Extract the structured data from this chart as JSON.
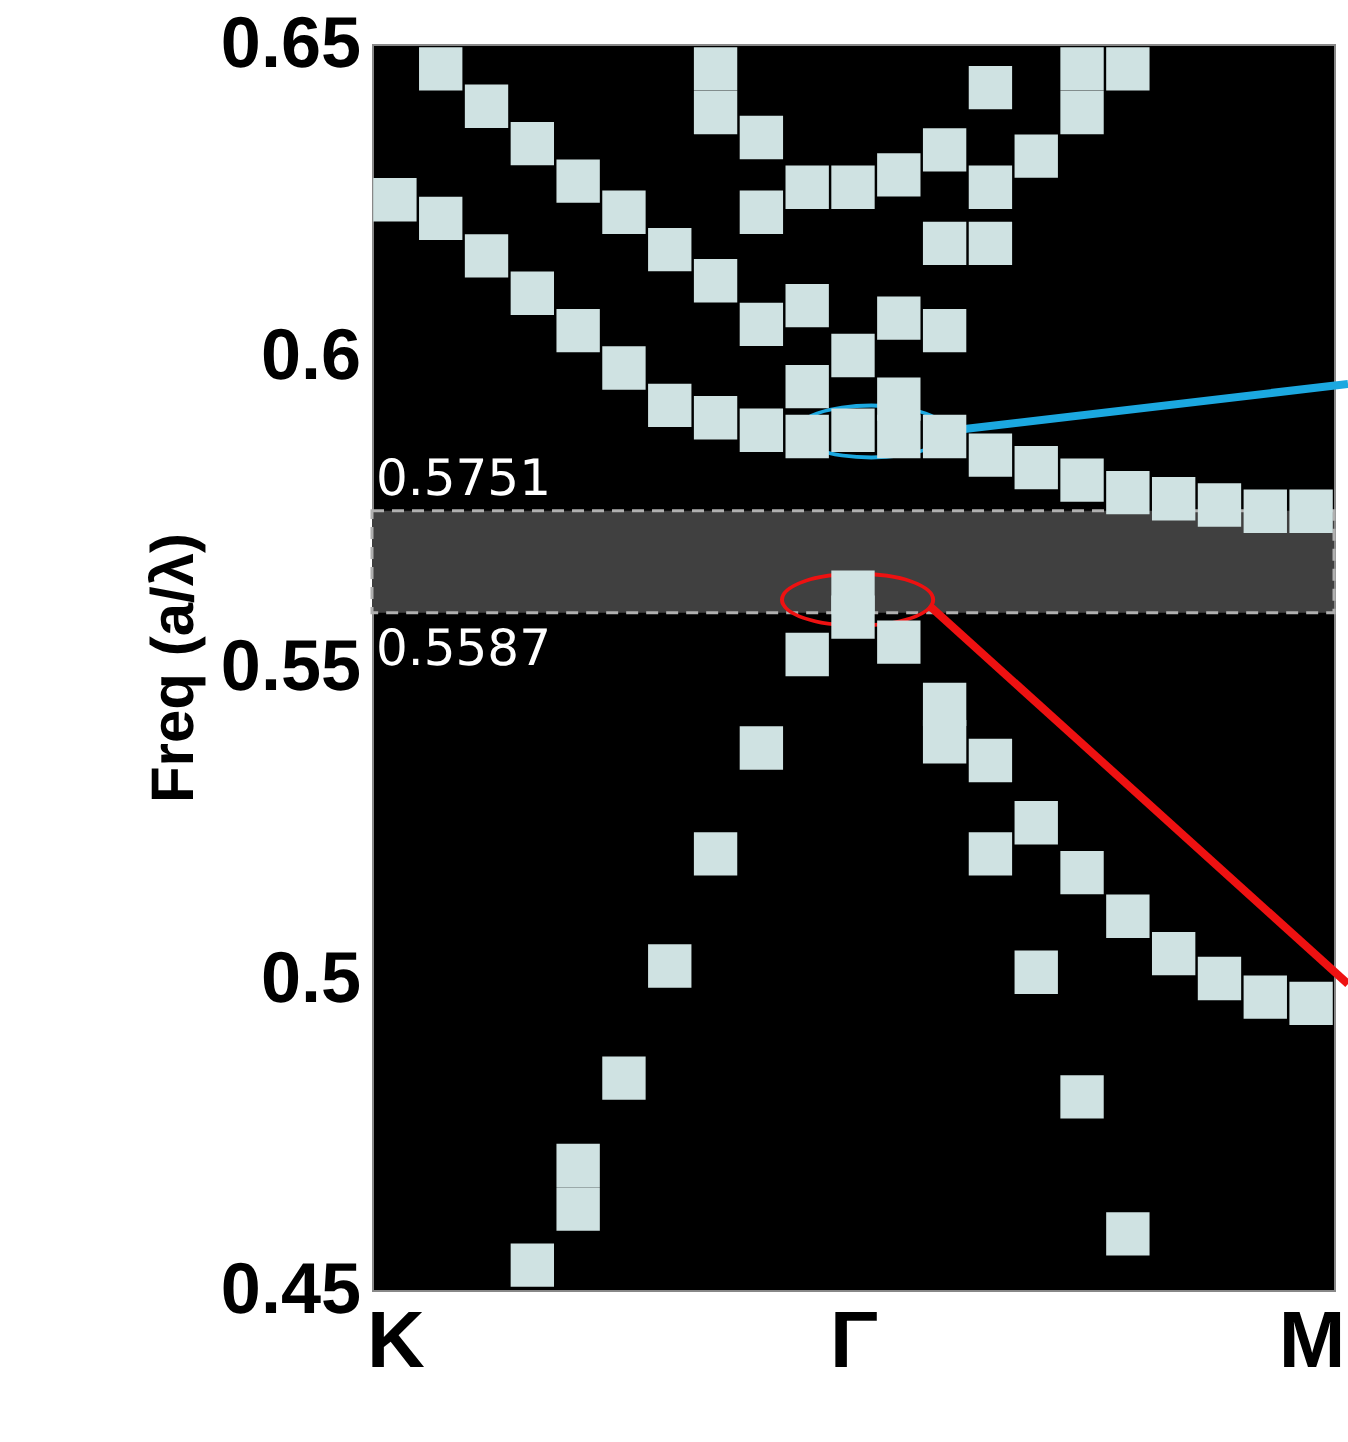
{
  "chart_data": {
    "type": "scatter",
    "ylabel": "Freq (a/λ)",
    "marker": "square",
    "grid": false,
    "categories": [
      "K",
      null,
      null,
      null,
      null,
      null,
      null,
      null,
      null,
      null,
      "Γ",
      null,
      null,
      null,
      null,
      null,
      null,
      null,
      null,
      null,
      "M"
    ],
    "ylim": [
      0.45,
      0.65
    ],
    "yticks": [
      {
        "value": 0.45,
        "label": "0.45"
      },
      {
        "value": 0.5,
        "label": "0.5"
      },
      {
        "value": 0.55,
        "label": "0.55"
      },
      {
        "value": 0.6,
        "label": "0.6"
      },
      {
        "value": 0.65,
        "label": "0.65"
      }
    ],
    "series": [
      {
        "color": "#cfe2e2",
        "values": [
          0.625,
          0.646,
          0.64,
          0.634,
          0.628,
          0.623,
          0.617,
          0.646,
          0.635,
          0.627,
          0.627,
          0.629,
          0.633,
          0.643,
          0.632,
          0.646,
          0.646,
          0.577,
          0.576,
          0.575,
          0.575
        ]
      },
      {
        "color": "#cfe2e2",
        "values": [
          null,
          0.622,
          0.616,
          0.61,
          0.604,
          0.598,
          0.592,
          0.639,
          0.623,
          0.608,
          0.6,
          0.606,
          0.618,
          0.627,
          0.582,
          0.639,
          0.578,
          0.504,
          0.5,
          0.497,
          0.496
        ]
      },
      {
        "color": "#cfe2e2",
        "values": [
          null,
          null,
          null,
          0.454,
          0.47,
          0.484,
          0.502,
          0.612,
          0.605,
          0.595,
          0.588,
          0.593,
          0.604,
          0.618,
          0.525,
          0.58,
          0.51,
          null,
          null,
          null,
          null
        ]
      },
      {
        "color": "#cfe2e2",
        "values": [
          null,
          null,
          null,
          null,
          0.463,
          null,
          null,
          0.59,
          0.588,
          0.587,
          0.562,
          0.587,
          0.587,
          0.584,
          0.501,
          0.517,
          0.459,
          null,
          null,
          null,
          null
        ]
      },
      {
        "color": "#cfe2e2",
        "values": [
          null,
          null,
          null,
          null,
          null,
          null,
          null,
          0.52,
          0.537,
          0.552,
          0.558,
          0.554,
          0.544,
          0.535,
          null,
          0.481,
          null,
          null,
          null,
          null,
          null
        ]
      },
      {
        "color": "#cfe2e2",
        "values": [
          null,
          null,
          null,
          null,
          null,
          null,
          null,
          null,
          null,
          null,
          null,
          null,
          0.538,
          0.52,
          null,
          null,
          null,
          null,
          null,
          null,
          null
        ]
      }
    ],
    "bands": [
      {
        "axis": "y",
        "from": 0.5587,
        "to": 0.5751,
        "color": "#404040"
      }
    ],
    "annotations": [
      "0.5751",
      "0.5587"
    ]
  }
}
